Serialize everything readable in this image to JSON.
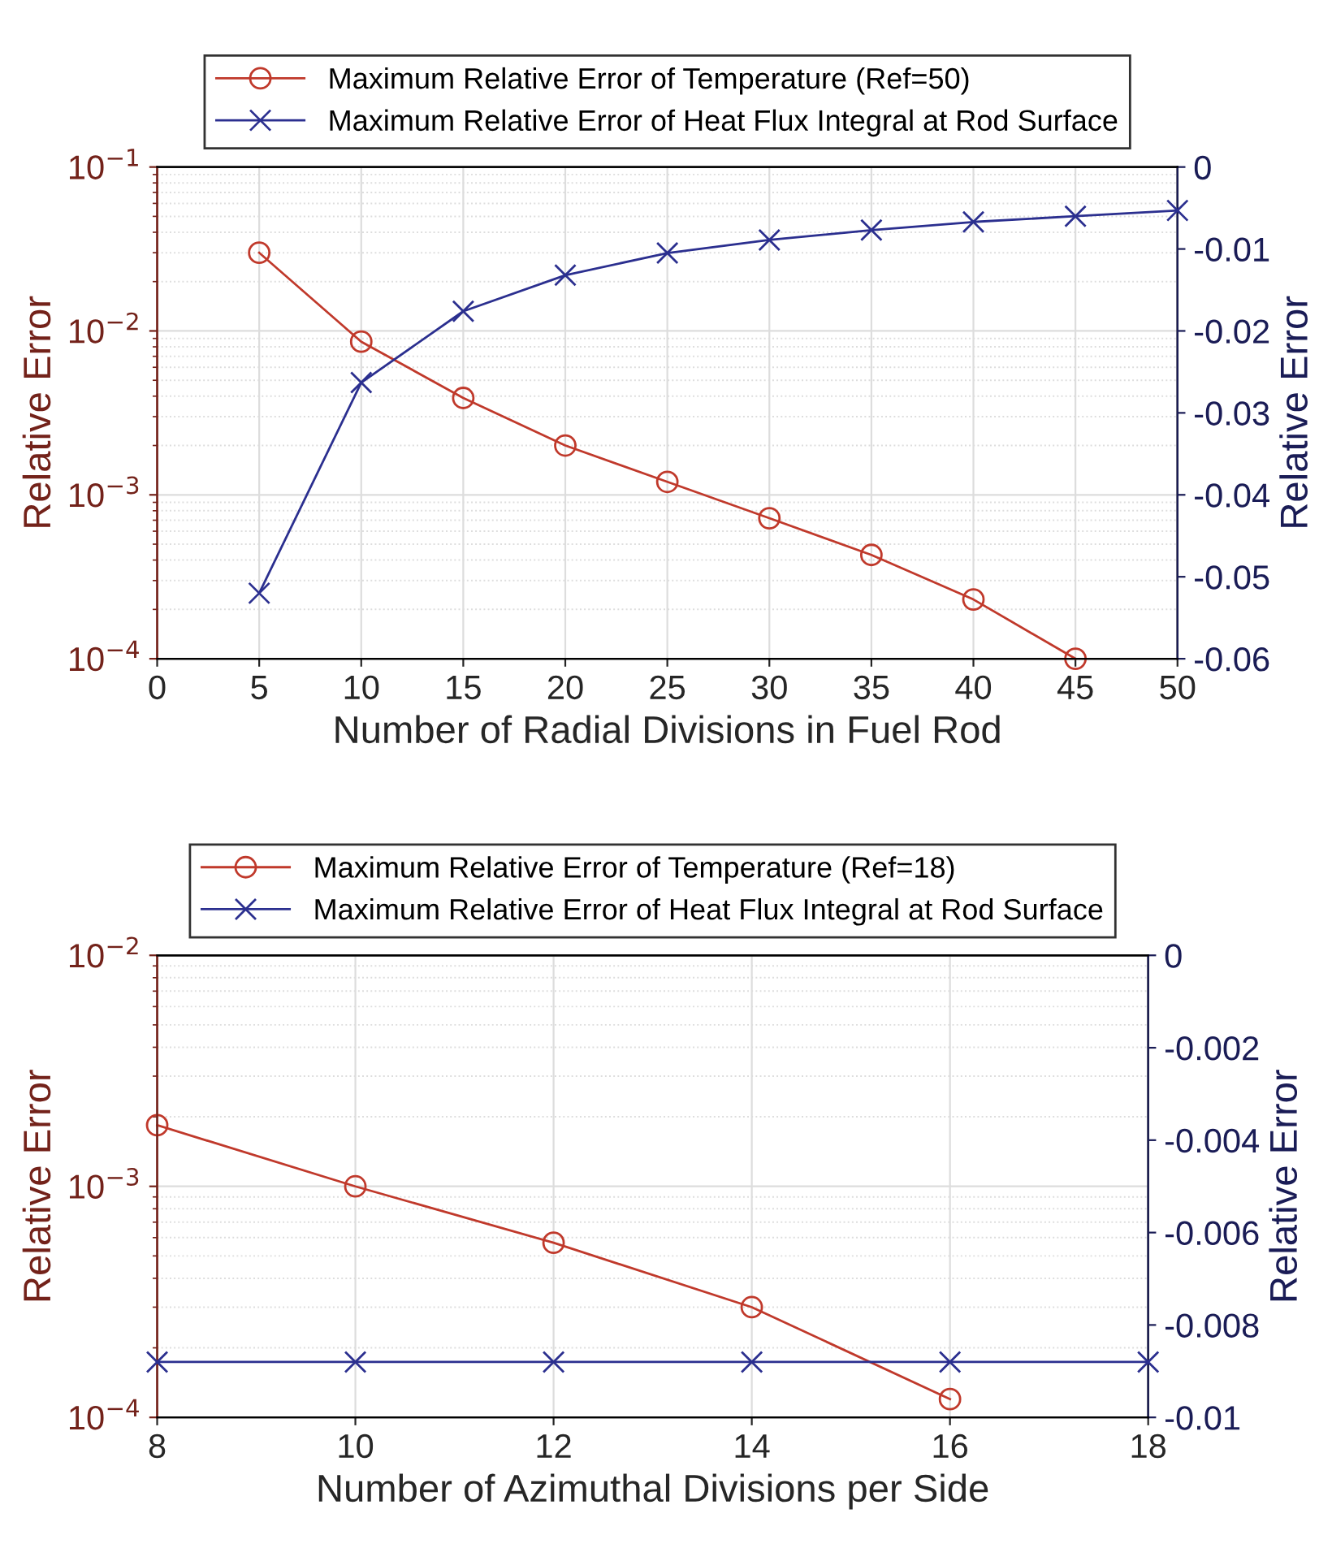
{
  "chart_data": [
    {
      "type": "line",
      "xlabel": "Number of Radial Divisions in Fuel Rod",
      "ylabel": "Relative Error",
      "y2label": "Relative Error",
      "log": "y",
      "grid": true,
      "legend": "top",
      "xlim": [
        0,
        50
      ],
      "xticks": [
        0,
        5,
        10,
        15,
        20,
        25,
        30,
        35,
        40,
        45,
        50
      ],
      "ylim": [
        0.0001,
        0.1
      ],
      "yticks": [
        {
          "value": 0.0001,
          "label": "10$^{−4}$"
        },
        {
          "value": 0.001,
          "label": "10$^{−3}$"
        },
        {
          "value": 0.01,
          "label": "10$^{−2}$"
        },
        {
          "value": 0.1,
          "label": "10$^{−1}$"
        }
      ],
      "y2lim": [
        -0.06,
        0
      ],
      "y2ticks": [
        -0.06,
        -0.05,
        -0.04,
        -0.03,
        -0.02,
        -0.01,
        0
      ],
      "series": [
        {
          "name": "Maximum Relative Error of Temperature (Ref=50)",
          "color": "#c0392b",
          "marker": "circle",
          "x": [
            5,
            10,
            15,
            20,
            25,
            30,
            35,
            40,
            45
          ],
          "values": [
            0.03,
            0.0086,
            0.0039,
            0.002,
            0.0012,
            0.00072,
            0.00043,
            0.00023,
            0.0001
          ]
        },
        {
          "name": "Maximum Relative Error of Heat Flux Integral at Rod Surface",
          "color": "#2b2f8f",
          "marker": "cross",
          "axis": "y2",
          "x": [
            5,
            10,
            15,
            20,
            25,
            30,
            35,
            40,
            45,
            50
          ],
          "values": [
            -0.052,
            -0.0263,
            -0.0176,
            -0.0132,
            -0.0105,
            -0.0089,
            -0.0077,
            -0.0067,
            -0.006,
            -0.0053
          ]
        }
      ]
    },
    {
      "type": "line",
      "xlabel": "Number of Azimuthal Divisions per Side",
      "ylabel": "Relative Error",
      "y2label": "Relative Error",
      "log": "y",
      "grid": true,
      "legend": "top",
      "xlim": [
        8,
        18
      ],
      "xticks": [
        8,
        10,
        12,
        14,
        16,
        18
      ],
      "ylim": [
        0.0001,
        0.01
      ],
      "yticks": [
        {
          "value": 0.0001,
          "label": "10$^{−4}$"
        },
        {
          "value": 0.001,
          "label": "10$^{−3}$"
        },
        {
          "value": 0.01,
          "label": "10$^{−2}$"
        }
      ],
      "y2lim": [
        -0.01,
        0
      ],
      "y2ticks": [
        -0.01,
        -0.008,
        -0.006,
        -0.004,
        -0.002,
        0
      ],
      "series": [
        {
          "name": "Maximum Relative Error of Temperature (Ref=18)",
          "color": "#c0392b",
          "marker": "circle",
          "x": [
            8,
            10,
            12,
            14,
            16
          ],
          "values": [
            0.00184,
            0.001,
            0.00057,
            0.0003,
            0.00012
          ]
        },
        {
          "name": "Maximum Relative Error of Heat Flux Integral at Rod Surface",
          "color": "#2b2f8f",
          "marker": "cross",
          "axis": "y2",
          "x": [
            8,
            10,
            12,
            14,
            16,
            18
          ],
          "values": [
            -0.0088,
            -0.0088,
            -0.0088,
            -0.0088,
            -0.0088,
            -0.0088
          ]
        }
      ]
    }
  ]
}
